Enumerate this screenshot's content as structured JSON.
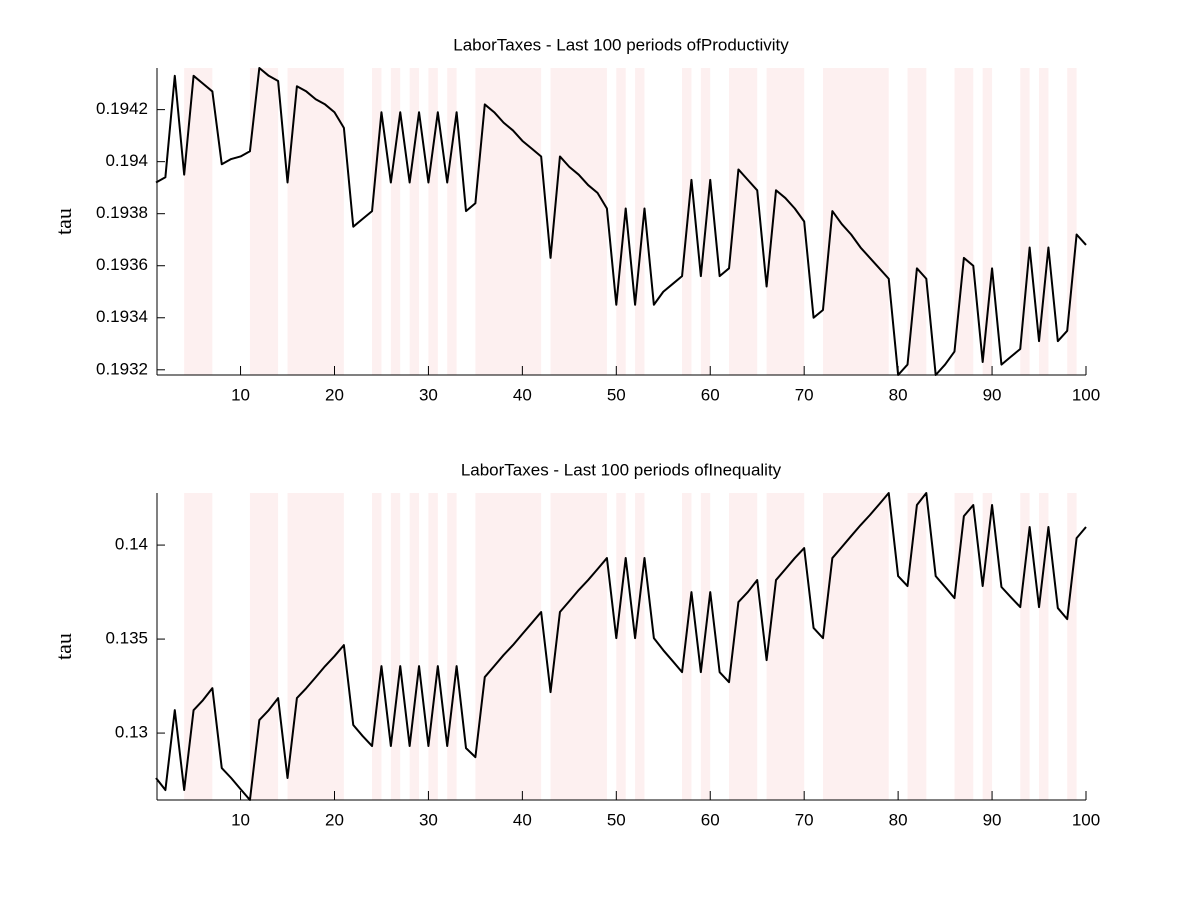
{
  "chart_data": [
    {
      "type": "line",
      "title": "LaborTaxes - Last 100 periods ofProductivity",
      "ylabel": "tau",
      "x": [
        1,
        2,
        3,
        4,
        5,
        6,
        7,
        8,
        9,
        10,
        11,
        12,
        13,
        14,
        15,
        16,
        17,
        18,
        19,
        20,
        21,
        22,
        23,
        24,
        25,
        26,
        27,
        28,
        29,
        30,
        31,
        32,
        33,
        34,
        35,
        36,
        37,
        38,
        39,
        40,
        41,
        42,
        43,
        44,
        45,
        46,
        47,
        48,
        49,
        50,
        51,
        52,
        53,
        54,
        55,
        56,
        57,
        58,
        59,
        60,
        61,
        62,
        63,
        64,
        65,
        66,
        67,
        68,
        69,
        70,
        71,
        72,
        73,
        74,
        75,
        76,
        77,
        78,
        79,
        80,
        81,
        82,
        83,
        84,
        85,
        86,
        87,
        88,
        89,
        90,
        91,
        92,
        93,
        94,
        95,
        96,
        97,
        98,
        99,
        100
      ],
      "values": [
        0.19392,
        0.19394,
        0.19433,
        0.19395,
        0.19433,
        0.1943,
        0.19427,
        0.19399,
        0.19401,
        0.19402,
        0.19404,
        0.19436,
        0.19433,
        0.19431,
        0.19392,
        0.19429,
        0.19427,
        0.19424,
        0.19422,
        0.19419,
        0.19413,
        0.19375,
        0.19378,
        0.19381,
        0.19419,
        0.19392,
        0.19419,
        0.19392,
        0.19419,
        0.19392,
        0.19419,
        0.19392,
        0.19419,
        0.19381,
        0.19384,
        0.19422,
        0.19419,
        0.19415,
        0.19412,
        0.19408,
        0.19405,
        0.19402,
        0.19363,
        0.19402,
        0.19398,
        0.19395,
        0.19391,
        0.19388,
        0.19382,
        0.19345,
        0.19382,
        0.19345,
        0.19382,
        0.19345,
        0.1935,
        0.19353,
        0.19356,
        0.19393,
        0.19356,
        0.19393,
        0.19356,
        0.19359,
        0.19397,
        0.19393,
        0.19389,
        0.19352,
        0.19389,
        0.19386,
        0.19382,
        0.19377,
        0.1934,
        0.19343,
        0.19381,
        0.19376,
        0.19372,
        0.19367,
        0.19363,
        0.19359,
        0.19355,
        0.19318,
        0.19322,
        0.19359,
        0.19355,
        0.19318,
        0.19322,
        0.19327,
        0.19363,
        0.1936,
        0.19323,
        0.19359,
        0.19322,
        0.19325,
        0.19328,
        0.19367,
        0.19331,
        0.19367,
        0.19331,
        0.19335,
        0.19372,
        0.19368
      ],
      "color": "#000000",
      "shaded_periods": [
        [
          4,
          7
        ],
        [
          11,
          14
        ],
        [
          15,
          21
        ],
        [
          24,
          25
        ],
        [
          26,
          27
        ],
        [
          28,
          29
        ],
        [
          30,
          31
        ],
        [
          32,
          33
        ],
        [
          35,
          42
        ],
        [
          43,
          49
        ],
        [
          50,
          51
        ],
        [
          52,
          53
        ],
        [
          57,
          58
        ],
        [
          59,
          60
        ],
        [
          62,
          65
        ],
        [
          66,
          70
        ],
        [
          72,
          79
        ],
        [
          81,
          83
        ],
        [
          86,
          88
        ],
        [
          89,
          90
        ],
        [
          93,
          94
        ],
        [
          95,
          96
        ],
        [
          98,
          99
        ]
      ],
      "shade_color": "#fdf0f0",
      "xlim": [
        1,
        100
      ],
      "xticks": [
        10,
        20,
        30,
        40,
        50,
        60,
        70,
        80,
        90,
        100
      ],
      "ylim": [
        0.19318,
        0.19436
      ],
      "yticks": [
        0.1932,
        0.1934,
        0.1936,
        0.1938,
        0.194,
        0.1942
      ]
    },
    {
      "type": "line",
      "title": "LaborTaxes - Last 100 periods ofInequality",
      "ylabel": "tau",
      "x": [
        1,
        2,
        3,
        4,
        5,
        6,
        7,
        8,
        9,
        10,
        11,
        12,
        13,
        14,
        15,
        16,
        17,
        18,
        19,
        20,
        21,
        22,
        23,
        24,
        25,
        26,
        27,
        28,
        29,
        30,
        31,
        32,
        33,
        34,
        35,
        36,
        37,
        38,
        39,
        40,
        41,
        42,
        43,
        44,
        45,
        46,
        47,
        48,
        49,
        50,
        51,
        52,
        53,
        54,
        55,
        56,
        57,
        58,
        59,
        60,
        61,
        62,
        63,
        64,
        65,
        66,
        67,
        68,
        69,
        70,
        71,
        72,
        73,
        74,
        75,
        76,
        77,
        78,
        79,
        80,
        81,
        82,
        83,
        84,
        85,
        86,
        87,
        88,
        89,
        90,
        91,
        92,
        93,
        94,
        95,
        96,
        97,
        98,
        99,
        100
      ],
      "values": [
        0.12761,
        0.12697,
        0.13122,
        0.12697,
        0.13122,
        0.13175,
        0.13239,
        0.12814,
        0.12761,
        0.12702,
        0.12644,
        0.13069,
        0.13122,
        0.13186,
        0.12761,
        0.13186,
        0.13239,
        0.13297,
        0.13356,
        0.13409,
        0.13468,
        0.13043,
        0.12984,
        0.12931,
        0.13356,
        0.12931,
        0.13356,
        0.12931,
        0.13356,
        0.12931,
        0.13356,
        0.12931,
        0.13356,
        0.1292,
        0.12872,
        0.13298,
        0.13356,
        0.13415,
        0.13468,
        0.13527,
        0.13585,
        0.13644,
        0.13218,
        0.13644,
        0.13702,
        0.13761,
        0.13814,
        0.13872,
        0.13931,
        0.13505,
        0.13931,
        0.13505,
        0.13931,
        0.13505,
        0.13441,
        0.13383,
        0.13324,
        0.1375,
        0.13324,
        0.1375,
        0.13324,
        0.13271,
        0.13697,
        0.1375,
        0.13814,
        0.13388,
        0.13814,
        0.13872,
        0.13931,
        0.13984,
        0.13559,
        0.13505,
        0.13931,
        0.13989,
        0.14048,
        0.14106,
        0.1416,
        0.14218,
        0.14277,
        0.13835,
        0.13782,
        0.14213,
        0.14277,
        0.13835,
        0.13777,
        0.13718,
        0.14154,
        0.14213,
        0.13782,
        0.14213,
        0.13777,
        0.13723,
        0.1367,
        0.14096,
        0.1367,
        0.14096,
        0.13665,
        0.13606,
        0.14037,
        0.14096
      ],
      "color": "#000000",
      "shaded_periods": [
        [
          4,
          7
        ],
        [
          11,
          14
        ],
        [
          15,
          21
        ],
        [
          24,
          25
        ],
        [
          26,
          27
        ],
        [
          28,
          29
        ],
        [
          30,
          31
        ],
        [
          32,
          33
        ],
        [
          35,
          42
        ],
        [
          43,
          49
        ],
        [
          50,
          51
        ],
        [
          52,
          53
        ],
        [
          57,
          58
        ],
        [
          59,
          60
        ],
        [
          62,
          65
        ],
        [
          66,
          70
        ],
        [
          72,
          79
        ],
        [
          81,
          83
        ],
        [
          86,
          88
        ],
        [
          89,
          90
        ],
        [
          93,
          94
        ],
        [
          95,
          96
        ],
        [
          98,
          99
        ]
      ],
      "shade_color": "#fdf0f0",
      "xlim": [
        1,
        100
      ],
      "xticks": [
        10,
        20,
        30,
        40,
        50,
        60,
        70,
        80,
        90,
        100
      ],
      "ylim": [
        0.12644,
        0.14277
      ],
      "yticks": [
        0.13,
        0.135,
        0.14
      ]
    }
  ]
}
